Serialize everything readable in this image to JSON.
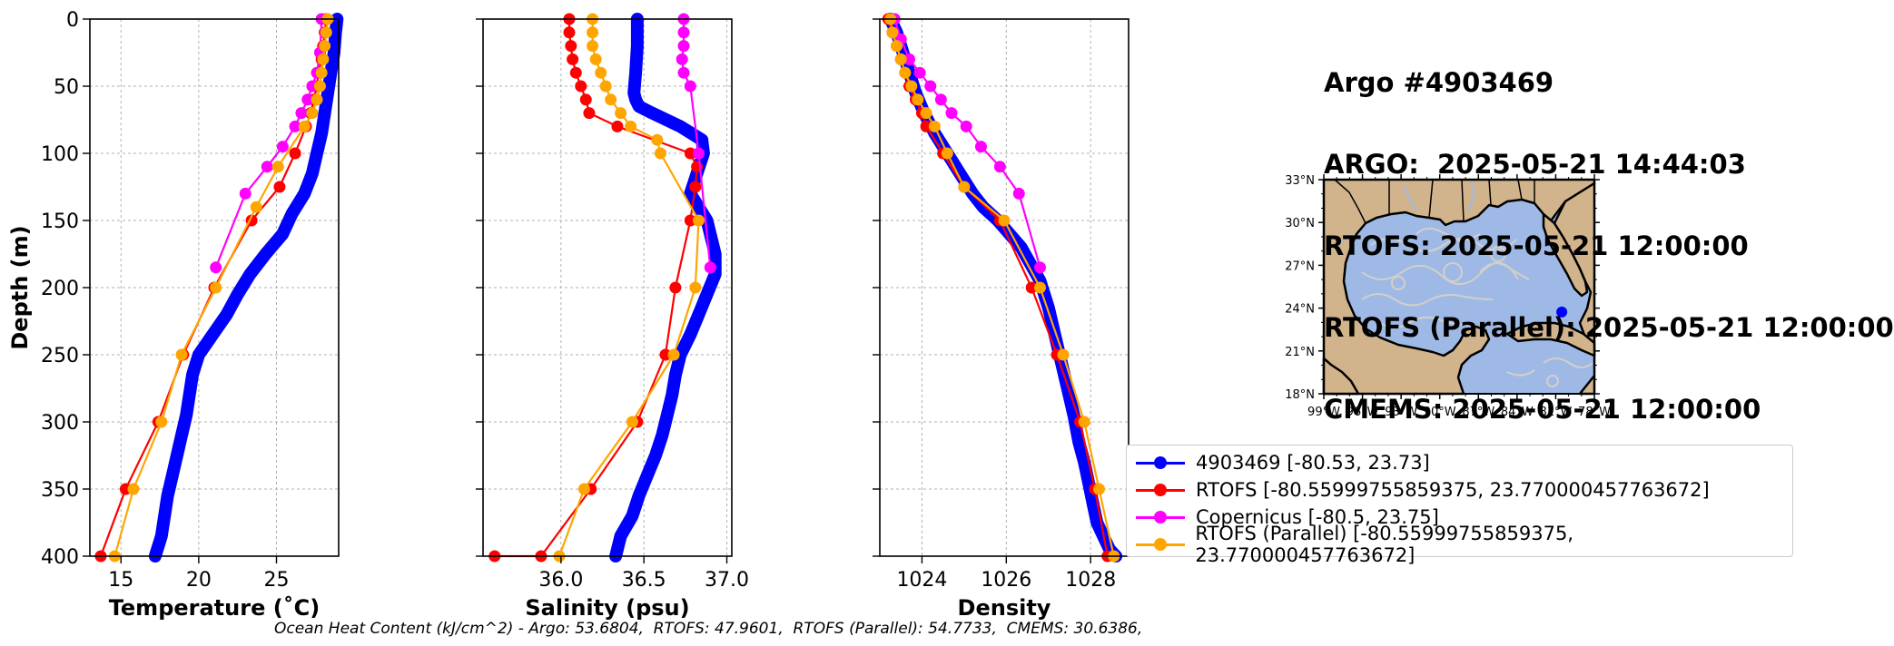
{
  "title_lines": [
    "Argo #4903469",
    "ARGO:  2025-05-21 14:44:03",
    "RTOFS: 2025-05-21 12:00:00",
    "RTOFS (Parallel): 2025-05-21 12:00:00",
    "CMEMS: 2025-05-21 12:00:00"
  ],
  "footer": "Ocean Heat Content (kJ/cm^2) - Argo: 53.6804,  RTOFS: 47.9601,  RTOFS (Parallel): 54.7733,  CMEMS: 30.6386,",
  "colors": {
    "argo": "#0000ff",
    "rtofs": "#ff0000",
    "copernicus": "#ff00ff",
    "rtofs_parallel": "#ffa500"
  },
  "legend": [
    {
      "label": "4903469 [-80.53, 23.73]",
      "color": "#0000ff"
    },
    {
      "label": "RTOFS [-80.55999755859375, 23.770000457763672]",
      "color": "#ff0000"
    },
    {
      "label": "Copernicus [-80.5, 23.75]",
      "color": "#ff00ff"
    },
    {
      "label": "RTOFS (Parallel) [-80.55999755859375, 23.770000457763672]",
      "color": "#ffa500"
    }
  ],
  "map": {
    "lat_ticks": [
      "33°N",
      "30°N",
      "27°N",
      "24°N",
      "21°N",
      "18°N"
    ],
    "lon_ticks": [
      "99°W",
      "96°W",
      "93°W",
      "90°W",
      "87°W",
      "84°W",
      "81°W",
      "78°W"
    ],
    "lon_range": [
      -99,
      -78
    ],
    "lat_range": [
      18,
      33
    ],
    "float_position": [
      -80.53,
      23.73
    ],
    "ocean_color": "#9fb9e6",
    "land_color": "#d2b48c"
  },
  "chart_data": [
    {
      "type": "line",
      "xlabel": "Temperature (˚C)",
      "ylabel": "Depth (m)",
      "xlim": [
        13,
        29
      ],
      "ylim": [
        400,
        0
      ],
      "xticks": [
        15,
        20,
        25
      ],
      "yticks": [
        0,
        50,
        100,
        150,
        200,
        250,
        300,
        350,
        400
      ],
      "grid": true,
      "series": [
        {
          "name": "4903469",
          "key": "argo",
          "style": "profile",
          "x": [
            28.9,
            28.8,
            28.7,
            28.5,
            28.3,
            28.1,
            27.9,
            27.6,
            27.3,
            26.8,
            26.0,
            25.4,
            24.3,
            23.3,
            22.5,
            21.8,
            20.9,
            20.0,
            19.6,
            19.4,
            19.2,
            18.9,
            18.6,
            18.3,
            18.0,
            17.8,
            17.6,
            17.2
          ],
          "y": [
            0,
            10,
            25,
            40,
            55,
            70,
            85,
            100,
            115,
            130,
            145,
            160,
            175,
            190,
            205,
            220,
            235,
            250,
            265,
            280,
            295,
            310,
            325,
            340,
            355,
            370,
            385,
            400
          ]
        },
        {
          "name": "RTOFS",
          "key": "rtofs",
          "x": [
            28.2,
            28.1,
            28.0,
            27.9,
            27.7,
            27.6,
            27.4,
            27.2,
            26.9,
            26.2,
            25.2,
            23.4,
            21.0,
            19.0,
            17.4,
            15.3,
            13.7
          ],
          "y": [
            0,
            10,
            20,
            30,
            40,
            50,
            60,
            70,
            80,
            100,
            125,
            150,
            200,
            250,
            300,
            350,
            400
          ]
        },
        {
          "name": "Copernicus",
          "key": "copernicus",
          "x": [
            27.9,
            27.8,
            27.6,
            27.3,
            27.0,
            26.6,
            26.2,
            25.4,
            24.4,
            23.0,
            21.1
          ],
          "y": [
            0,
            25,
            40,
            50,
            60,
            70,
            80,
            95,
            110,
            130,
            185
          ]
        },
        {
          "name": "RTOFS (Parallel)",
          "key": "rtofs_parallel",
          "x": [
            28.3,
            28.2,
            28.1,
            28.0,
            27.9,
            27.8,
            27.6,
            27.3,
            26.8,
            25.1,
            23.7,
            21.1,
            18.9,
            17.6,
            15.8,
            14.6
          ],
          "y": [
            0,
            10,
            20,
            30,
            40,
            50,
            60,
            70,
            80,
            110,
            140,
            200,
            250,
            300,
            350,
            400
          ]
        }
      ]
    },
    {
      "type": "line",
      "xlabel": "Salinity (psu)",
      "ylabel": "",
      "xlim": [
        35.53,
        37.03
      ],
      "ylim": [
        400,
        0
      ],
      "xticks": [
        36.0,
        36.5,
        37.0
      ],
      "xticklabels": [
        "36.0",
        "36.5",
        "37.0"
      ],
      "yticks": [
        0,
        50,
        100,
        150,
        200,
        250,
        300,
        350,
        400
      ],
      "grid": true,
      "series": [
        {
          "name": "4903469",
          "key": "argo",
          "style": "profile",
          "x": [
            36.46,
            36.46,
            36.45,
            36.44,
            36.45,
            36.47,
            36.55,
            36.72,
            36.85,
            36.86,
            36.82,
            36.78,
            36.88,
            36.93,
            36.93,
            36.88,
            36.83,
            36.78,
            36.72,
            36.69,
            36.67,
            36.64,
            36.61,
            36.57,
            36.52,
            36.47,
            36.43,
            36.36,
            36.33
          ],
          "y": [
            0,
            20,
            40,
            55,
            60,
            65,
            70,
            80,
            90,
            100,
            115,
            130,
            150,
            175,
            190,
            205,
            220,
            235,
            250,
            265,
            280,
            295,
            310,
            325,
            340,
            355,
            370,
            385,
            400
          ]
        },
        {
          "name": "RTOFS",
          "key": "rtofs",
          "x": [
            36.05,
            36.05,
            36.06,
            36.07,
            36.09,
            36.12,
            36.15,
            36.17,
            36.34,
            36.78,
            36.82,
            36.81,
            36.78,
            36.69,
            36.63,
            36.46,
            36.18,
            35.88,
            35.6
          ],
          "y": [
            0,
            10,
            20,
            30,
            40,
            50,
            60,
            70,
            80,
            100,
            110,
            125,
            150,
            200,
            250,
            300,
            350,
            400,
            400
          ]
        },
        {
          "name": "Copernicus",
          "key": "copernicus",
          "x": [
            36.74,
            36.74,
            36.74,
            36.73,
            36.74,
            36.78,
            36.83,
            36.9
          ],
          "y": [
            0,
            10,
            20,
            30,
            40,
            50,
            100,
            185
          ]
        },
        {
          "name": "RTOFS (Parallel)",
          "key": "rtofs_parallel",
          "x": [
            36.19,
            36.19,
            36.19,
            36.21,
            36.24,
            36.27,
            36.3,
            36.36,
            36.42,
            36.58,
            36.6,
            36.83,
            36.81,
            36.68,
            36.43,
            36.14,
            35.99
          ],
          "y": [
            0,
            10,
            20,
            30,
            40,
            50,
            60,
            70,
            80,
            90,
            100,
            150,
            200,
            250,
            300,
            350,
            400
          ]
        }
      ]
    },
    {
      "type": "line",
      "xlabel": "Density",
      "ylabel": "",
      "xlim": [
        1023.0,
        1028.9
      ],
      "ylim": [
        400,
        0
      ],
      "xticks": [
        1024,
        1026,
        1028
      ],
      "yticks": [
        0,
        50,
        100,
        150,
        200,
        250,
        300,
        350,
        400
      ],
      "grid": true,
      "series": [
        {
          "name": "4903469",
          "key": "argo",
          "style": "profile",
          "x": [
            1023.25,
            1023.4,
            1023.55,
            1023.7,
            1023.85,
            1024.05,
            1024.3,
            1024.6,
            1024.9,
            1025.2,
            1025.45,
            1025.8,
            1026.35,
            1026.8,
            1027.0,
            1027.15,
            1027.3,
            1027.45,
            1027.6,
            1027.72,
            1027.85,
            1027.95,
            1028.05,
            1028.15,
            1028.3,
            1028.45,
            1028.6
          ],
          "y": [
            0,
            10,
            25,
            40,
            55,
            70,
            85,
            100,
            115,
            130,
            140,
            150,
            170,
            195,
            215,
            235,
            255,
            275,
            295,
            315,
            330,
            345,
            360,
            375,
            385,
            395,
            400
          ]
        },
        {
          "name": "RTOFS",
          "key": "rtofs",
          "x": [
            1023.2,
            1023.3,
            1023.4,
            1023.5,
            1023.6,
            1023.7,
            1023.85,
            1024.0,
            1024.1,
            1024.5,
            1025.0,
            1025.85,
            1026.6,
            1027.2,
            1027.75,
            1028.1,
            1028.4
          ],
          "y": [
            0,
            10,
            20,
            30,
            40,
            50,
            60,
            70,
            80,
            100,
            125,
            150,
            200,
            250,
            300,
            350,
            400
          ]
        },
        {
          "name": "Copernicus",
          "key": "copernicus",
          "x": [
            1023.35,
            1023.5,
            1023.7,
            1023.95,
            1024.2,
            1024.45,
            1024.7,
            1025.05,
            1025.4,
            1025.85,
            1026.3,
            1026.8
          ],
          "y": [
            0,
            15,
            30,
            40,
            50,
            60,
            70,
            80,
            95,
            110,
            130,
            185
          ]
        },
        {
          "name": "RTOFS (Parallel)",
          "key": "rtofs_parallel",
          "x": [
            1023.25,
            1023.3,
            1023.4,
            1023.5,
            1023.6,
            1023.75,
            1023.9,
            1024.1,
            1024.3,
            1024.6,
            1025.0,
            1025.95,
            1026.8,
            1027.35,
            1027.85,
            1028.2,
            1028.55
          ],
          "y": [
            0,
            10,
            20,
            30,
            40,
            50,
            60,
            70,
            80,
            100,
            125,
            150,
            200,
            250,
            300,
            350,
            400
          ]
        }
      ]
    }
  ]
}
